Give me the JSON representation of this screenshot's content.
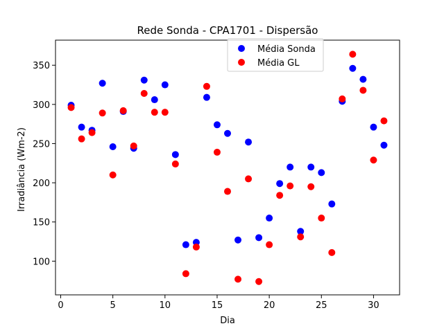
{
  "chart_data": {
    "type": "scatter",
    "title": "Rede Sonda - CPA1701 - Dispersão",
    "xlabel": "Dia",
    "ylabel": "Irradiância (Wm-2)",
    "xlim": [
      -0.5,
      32.5
    ],
    "ylim": [
      57,
      382
    ],
    "xticks": [
      0,
      5,
      10,
      15,
      20,
      25,
      30
    ],
    "yticks": [
      100,
      150,
      200,
      250,
      300,
      350
    ],
    "grid": false,
    "legend_position": "top-center",
    "series": [
      {
        "name": "Média Sonda",
        "color": "#0000ff",
        "x": [
          1,
          2,
          3,
          4,
          5,
          6,
          7,
          8,
          9,
          10,
          11,
          12,
          13,
          14,
          15,
          16,
          17,
          18,
          19,
          20,
          21,
          22,
          23,
          24,
          25,
          26,
          27,
          28,
          29,
          30,
          31
        ],
        "y": [
          299,
          271,
          267,
          327,
          246,
          291,
          244,
          331,
          306,
          325,
          236,
          121,
          124,
          309,
          274,
          263,
          127,
          252,
          130,
          155,
          199,
          220,
          138,
          220,
          213,
          173,
          304,
          346,
          332,
          271,
          248
        ]
      },
      {
        "name": "Média GL",
        "color": "#ff0000",
        "x": [
          1,
          2,
          3,
          4,
          5,
          6,
          7,
          8,
          9,
          10,
          11,
          12,
          13,
          14,
          15,
          16,
          17,
          18,
          19,
          20,
          21,
          22,
          23,
          24,
          25,
          26,
          27,
          28,
          29,
          30,
          31
        ],
        "y": [
          296,
          256,
          264,
          289,
          210,
          292,
          247,
          314,
          290,
          290,
          224,
          84,
          118,
          323,
          239,
          189,
          77,
          205,
          74,
          121,
          184,
          196,
          131,
          195,
          155,
          111,
          307,
          364,
          318,
          229,
          279
        ]
      }
    ]
  }
}
